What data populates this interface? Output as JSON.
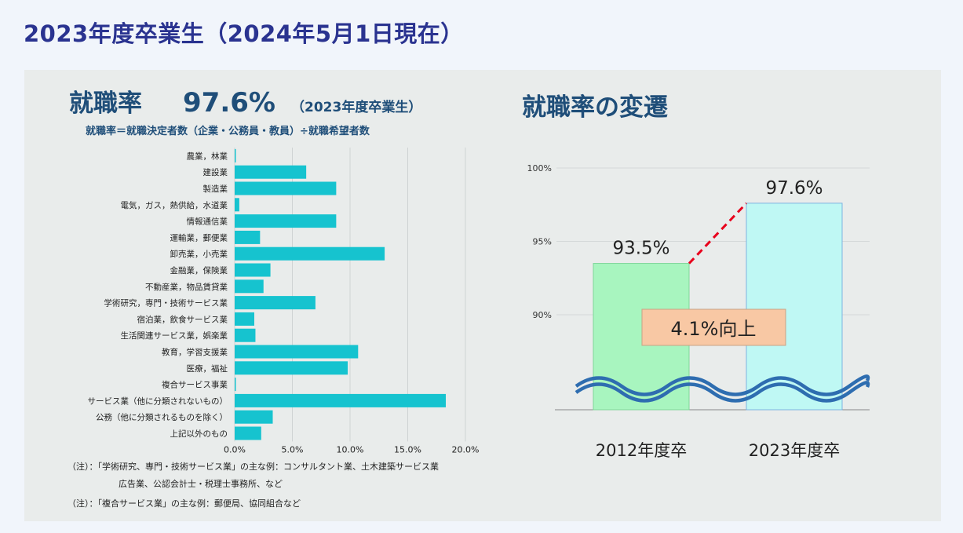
{
  "page": {
    "title": "2023年度卒業生（2024年5月1日現在）"
  },
  "colors": {
    "title": "#2a3390",
    "heading": "#1f4e79",
    "bar": "#16c3cf",
    "bar_2012": "#a8f5bf",
    "bar_2023": "#bff8f4",
    "callout_fill": "#f8c8a4",
    "dash": "#e8001c",
    "wave": "#2e6db0"
  },
  "left": {
    "heading_prefix": "就職率",
    "heading_value": "97.6%",
    "heading_suffix": "（2023年度卒業生）",
    "formula": "就職率＝就職決定者数（企業・公務員・教員）÷就職希望者数",
    "note1_line1": "（注）：「学術研究、専門・技術サービス業」の主な例：コンサルタント業、土木建築サービス業",
    "note1_line2": "広告業、公認会計士・税理士事務所、など",
    "note2": "（注）：「複合サービス業」の主な例：郵便局、協同組合など"
  },
  "right": {
    "heading": "就職率の変遷",
    "callout": "4.1%向上"
  },
  "chart_data": [
    {
      "type": "bar",
      "orientation": "horizontal",
      "categories": [
        "農業，林業",
        "建設業",
        "製造業",
        "電気，ガス，熱供給，水道業",
        "情報通信業",
        "運輸業，郵便業",
        "卸売業，小売業",
        "金融業，保険業",
        "不動産業，物品賃貸業",
        "学術研究，専門・技術サービス業",
        "宿泊業，飲食サービス業",
        "生活関連サービス業，娯楽業",
        "教育，学習支援業",
        "医療，福祉",
        "複合サービス事業",
        "サービス業（他に分類されないもの）",
        "公務（他に分類されるものを除く）",
        "上記以外のもの"
      ],
      "values": [
        0.1,
        6.2,
        8.8,
        0.4,
        8.8,
        2.2,
        13.0,
        3.1,
        2.5,
        7.0,
        1.7,
        1.8,
        10.7,
        9.8,
        0.1,
        18.3,
        3.3,
        2.3
      ],
      "x_ticks": [
        "0.0%",
        "5.0%",
        "10.0%",
        "15.0%",
        "20.0%"
      ],
      "xlim": [
        0,
        20
      ],
      "grid": true
    },
    {
      "type": "bar",
      "categories": [
        "2012年度卒",
        "2023年度卒"
      ],
      "values": [
        93.5,
        97.6
      ],
      "data_labels": [
        "93.5%",
        "97.6%"
      ],
      "y_ticks": [
        "90%",
        "95%",
        "100%"
      ],
      "ylim": [
        90,
        100
      ],
      "axis_break": true,
      "grid": true
    }
  ]
}
